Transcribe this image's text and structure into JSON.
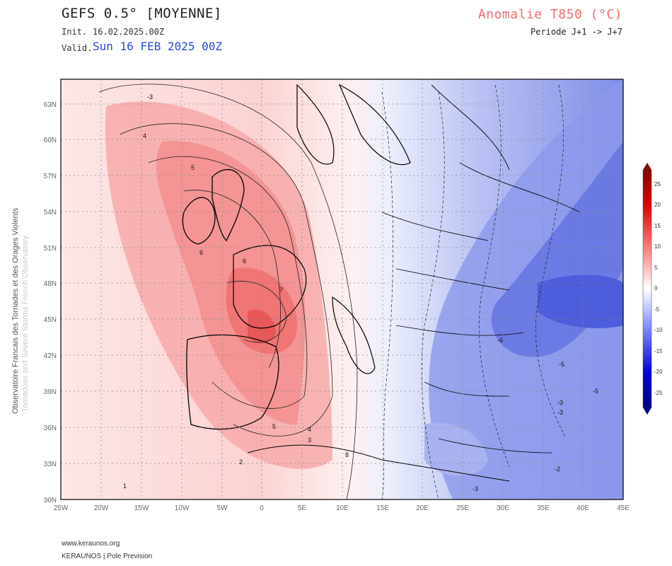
{
  "header": {
    "model_title": "GEFS 0.5° [MOYENNE]",
    "init_label": "Init.",
    "init_value": "16.02.2025.00Z",
    "valid_label": "Valid.",
    "valid_value": "Sun 16 FEB 2025 00Z",
    "variable_title": "Anomalie T850 (°C)",
    "period": "Periode J+1 -> J+7"
  },
  "side_text": {
    "line1": "Observatoire Francais des Tornades et des Orages Violents",
    "line2": "Tornadoes and Severe Storms French Observatory"
  },
  "footer": {
    "website": "www.keraunos.org",
    "credit": "KERAUNOS | Pole Prevision"
  },
  "map": {
    "lon_labels": [
      "25W",
      "20W",
      "15W",
      "10W",
      "5W",
      "0",
      "5E",
      "10E",
      "15E",
      "20E",
      "25E",
      "30E",
      "35E",
      "40E",
      "45E"
    ],
    "lat_labels": [
      "63N",
      "60N",
      "57N",
      "54N",
      "51N",
      "48N",
      "45N",
      "42N",
      "39N",
      "36N",
      "33N",
      "30N"
    ],
    "contour_labels": [
      "-3",
      "4",
      "5",
      "6",
      "6",
      "7",
      "1",
      "2",
      "5",
      "4",
      "3",
      "-6",
      "-5",
      "-5",
      "-3",
      "-3",
      "-2",
      "-3",
      "8"
    ],
    "colors": {
      "warm": "#ff5a5a",
      "cold": "#3a4fe0",
      "grid": "#888888"
    }
  },
  "colorbar": {
    "ticks": [
      "25",
      "20",
      "15",
      "10",
      "5",
      "0",
      "-5",
      "-10",
      "-15",
      "-20",
      "-25"
    ]
  }
}
